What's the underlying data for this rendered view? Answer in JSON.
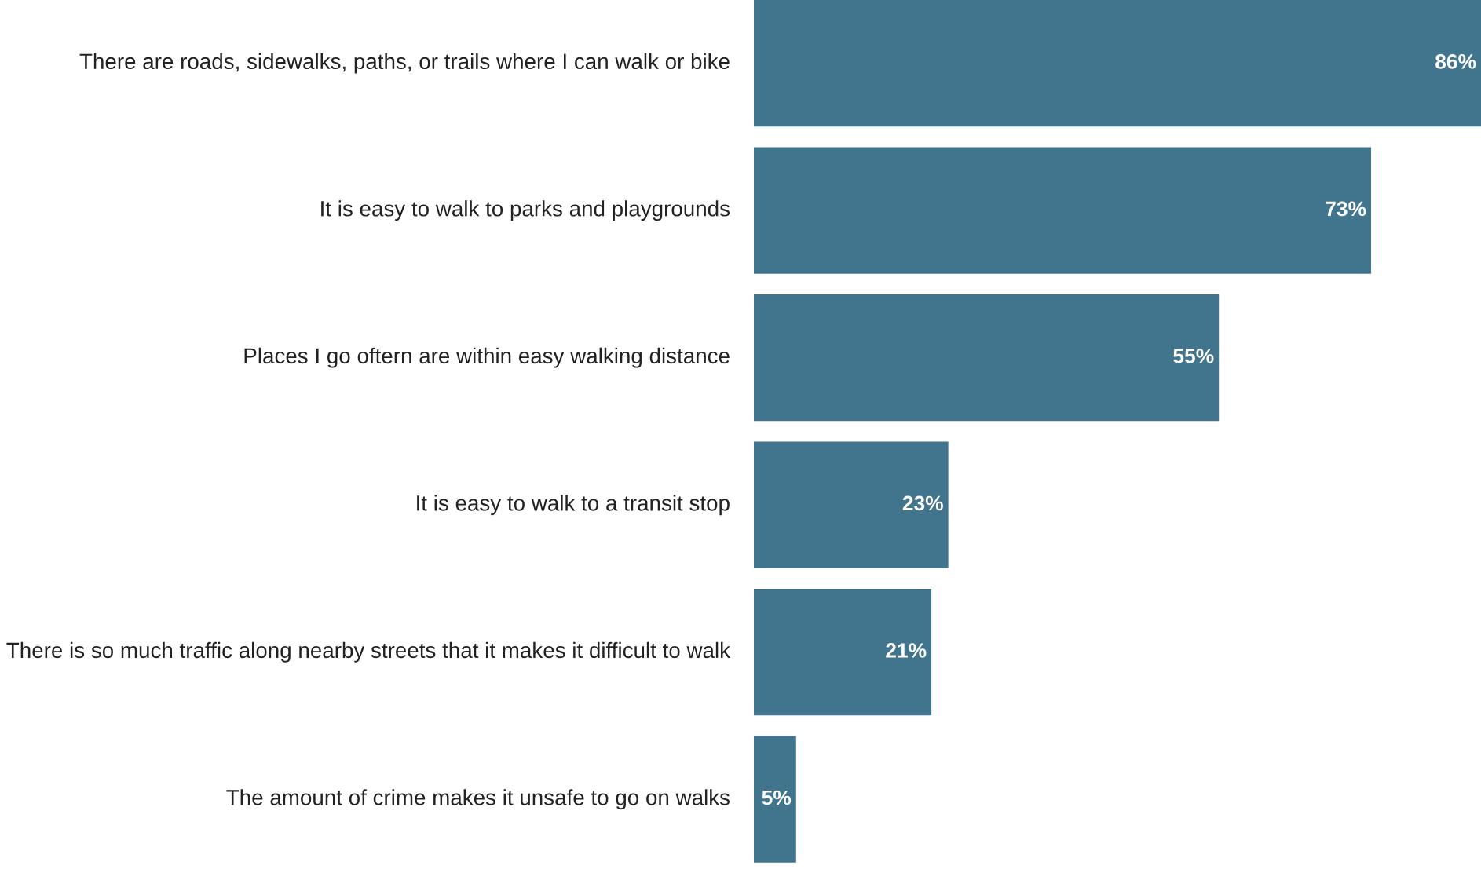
{
  "chart_data": {
    "type": "bar",
    "orientation": "horizontal",
    "categories": [
      "There are roads, sidewalks, paths, or trails where I can walk or bike",
      "It is easy to walk to parks and playgrounds",
      "Places I go oftern are within easy walking distance",
      "It is easy to walk to a transit stop",
      "There is so much traffic along nearby streets that it makes it difficult to walk",
      "The amount of crime makes it unsafe to go on walks"
    ],
    "values": [
      86,
      73,
      55,
      23,
      21,
      5
    ],
    "value_labels": [
      "86%",
      "73%",
      "55%",
      "23%",
      "21%",
      "5%"
    ],
    "color": "#41748d"
  }
}
